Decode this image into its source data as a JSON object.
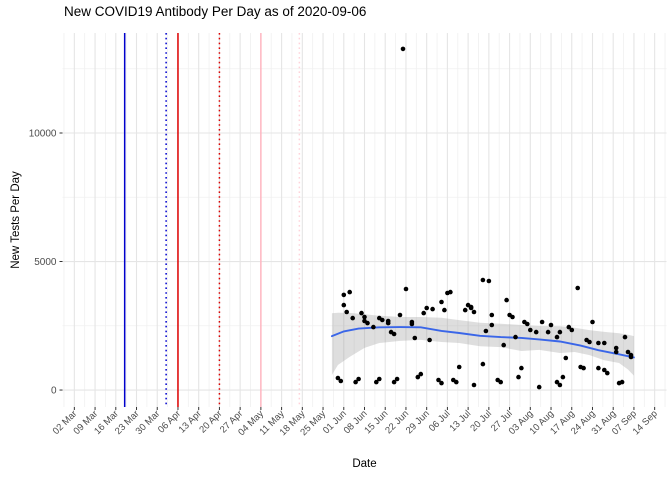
{
  "chart": {
    "title": "New COVID19 Antibody Per Day as of 2020-09-06",
    "x_label": "Date",
    "y_label": "New Tests Per Day"
  },
  "chart_data": {
    "type": "scatter",
    "title": "New COVID19 Antibody Per Day as of 2020-09-06",
    "xlabel": "Date",
    "ylabel": "New Tests Per Day",
    "legend": "none",
    "grid": true,
    "x_domain": [
      "2020-02-27",
      "2020-09-18"
    ],
    "y_domain": [
      -660,
      13890
    ],
    "x_breaks": [
      [
        "2020-03-02",
        "02 Mar"
      ],
      [
        "2020-03-09",
        "09 Mar"
      ],
      [
        "2020-03-16",
        "16 Mar"
      ],
      [
        "2020-03-23",
        "23 Mar"
      ],
      [
        "2020-03-30",
        "30 Mar"
      ],
      [
        "2020-04-06",
        "06 Apr"
      ],
      [
        "2020-04-13",
        "13 Apr"
      ],
      [
        "2020-04-20",
        "20 Apr"
      ],
      [
        "2020-04-27",
        "27 Apr"
      ],
      [
        "2020-05-04",
        "04 May"
      ],
      [
        "2020-05-11",
        "11 May"
      ],
      [
        "2020-05-18",
        "18 May"
      ],
      [
        "2020-05-25",
        "25 May"
      ],
      [
        "2020-06-01",
        "01 Jun"
      ],
      [
        "2020-06-08",
        "08 Jun"
      ],
      [
        "2020-06-15",
        "15 Jun"
      ],
      [
        "2020-06-22",
        "22 Jun"
      ],
      [
        "2020-06-29",
        "29 Jun"
      ],
      [
        "2020-07-06",
        "06 Jul"
      ],
      [
        "2020-07-13",
        "13 Jul"
      ],
      [
        "2020-07-20",
        "20 Jul"
      ],
      [
        "2020-07-27",
        "27 Jul"
      ],
      [
        "2020-08-03",
        "03 Aug"
      ],
      [
        "2020-08-10",
        "10 Aug"
      ],
      [
        "2020-08-17",
        "17 Aug"
      ],
      [
        "2020-08-24",
        "24 Aug"
      ],
      [
        "2020-08-31",
        "31 Aug"
      ],
      [
        "2020-09-07",
        "07 Sep"
      ],
      [
        "2020-09-14",
        "14 Sep"
      ]
    ],
    "y_breaks": [
      [
        0,
        "0"
      ],
      [
        5000,
        "5000"
      ],
      [
        10000,
        "10000"
      ]
    ],
    "y_minor_breaks": [
      2500,
      7500,
      12500
    ],
    "point_color": "#000000",
    "vlines": [
      {
        "date": "2020-03-19",
        "color": "#0000CC",
        "style": "solid"
      },
      {
        "date": "2020-04-02",
        "color": "#0000CC",
        "style": "dotted"
      },
      {
        "date": "2020-04-06",
        "color": "#DD0000",
        "style": "solid"
      },
      {
        "date": "2020-04-20",
        "color": "#DD0000",
        "style": "dotted"
      },
      {
        "date": "2020-05-04",
        "color": "#FFB6C1",
        "style": "solid"
      },
      {
        "date": "2020-05-17",
        "color": "#FFD3DA",
        "style": "dotted"
      }
    ],
    "smooth_line": {
      "color": "#3A66E8",
      "points": [
        [
          "2020-05-28",
          2100
        ],
        [
          "2020-06-01",
          2280
        ],
        [
          "2020-06-06",
          2390
        ],
        [
          "2020-06-13",
          2440
        ],
        [
          "2020-06-20",
          2450
        ],
        [
          "2020-06-27",
          2440
        ],
        [
          "2020-07-04",
          2300
        ],
        [
          "2020-07-10",
          2220
        ],
        [
          "2020-07-17",
          2110
        ],
        [
          "2020-07-24",
          2060
        ],
        [
          "2020-07-31",
          2030
        ],
        [
          "2020-08-06",
          1970
        ],
        [
          "2020-08-13",
          1890
        ],
        [
          "2020-08-20",
          1730
        ],
        [
          "2020-08-26",
          1550
        ],
        [
          "2020-09-02",
          1390
        ],
        [
          "2020-09-07",
          1270
        ]
      ]
    },
    "confidence_band": {
      "color": "#999999",
      "opacity": 0.32,
      "points": [
        [
          "2020-05-28",
          585,
          2990
        ],
        [
          "2020-05-30",
          975,
          3010
        ],
        [
          "2020-06-03",
          1290,
          3000
        ],
        [
          "2020-06-08",
          1640,
          2950
        ],
        [
          "2020-06-13",
          1830,
          2890
        ],
        [
          "2020-06-20",
          1910,
          2840
        ],
        [
          "2020-06-27",
          1950,
          2840
        ],
        [
          "2020-07-04",
          1870,
          2810
        ],
        [
          "2020-07-10",
          1830,
          2720
        ],
        [
          "2020-07-17",
          1700,
          2620
        ],
        [
          "2020-07-24",
          1670,
          2580
        ],
        [
          "2020-07-31",
          1520,
          2530
        ],
        [
          "2020-08-06",
          1560,
          2490
        ],
        [
          "2020-08-13",
          1440,
          2480
        ],
        [
          "2020-08-18",
          1480,
          2420
        ],
        [
          "2020-08-23",
          1360,
          2330
        ],
        [
          "2020-08-28",
          1160,
          2260
        ],
        [
          "2020-09-02",
          1050,
          2210
        ],
        [
          "2020-09-05",
          800,
          2150
        ],
        [
          "2020-09-07",
          560,
          2100
        ]
      ]
    },
    "points": [
      [
        "2020-05-30",
        470
      ],
      [
        "2020-05-31",
        350
      ],
      [
        "2020-06-01",
        3700
      ],
      [
        "2020-06-01",
        3305
      ],
      [
        "2020-06-02",
        3035
      ],
      [
        "2020-06-03",
        3810
      ],
      [
        "2020-06-04",
        2800
      ],
      [
        "2020-06-05",
        310
      ],
      [
        "2020-06-06",
        430
      ],
      [
        "2020-06-07",
        2995
      ],
      [
        "2020-06-08",
        2840
      ],
      [
        "2020-06-08",
        2685
      ],
      [
        "2020-06-09",
        2605
      ],
      [
        "2020-06-11",
        2450
      ],
      [
        "2020-06-12",
        310
      ],
      [
        "2020-06-13",
        430
      ],
      [
        "2020-06-13",
        2800
      ],
      [
        "2020-06-14",
        2725
      ],
      [
        "2020-06-16",
        2685
      ],
      [
        "2020-06-16",
        2605
      ],
      [
        "2020-06-17",
        2255
      ],
      [
        "2020-06-18",
        2180
      ],
      [
        "2020-06-18",
        310
      ],
      [
        "2020-06-19",
        430
      ],
      [
        "2020-06-20",
        2920
      ],
      [
        "2020-06-21",
        13270
      ],
      [
        "2020-06-22",
        3930
      ],
      [
        "2020-06-24",
        2645
      ],
      [
        "2020-06-24",
        2570
      ],
      [
        "2020-06-25",
        2025
      ],
      [
        "2020-06-26",
        505
      ],
      [
        "2020-06-27",
        620
      ],
      [
        "2020-06-28",
        2995
      ],
      [
        "2020-06-29",
        3190
      ],
      [
        "2020-06-30",
        1945
      ],
      [
        "2020-07-01",
        3150
      ],
      [
        "2020-07-03",
        390
      ],
      [
        "2020-07-04",
        270
      ],
      [
        "2020-07-04",
        3425
      ],
      [
        "2020-07-05",
        3110
      ],
      [
        "2020-07-06",
        3775
      ],
      [
        "2020-07-07",
        3810
      ],
      [
        "2020-07-08",
        390
      ],
      [
        "2020-07-09",
        310
      ],
      [
        "2020-07-10",
        895
      ],
      [
        "2020-07-12",
        3110
      ],
      [
        "2020-07-13",
        3305
      ],
      [
        "2020-07-14",
        3190
      ],
      [
        "2020-07-14",
        3230
      ],
      [
        "2020-07-15",
        3035
      ],
      [
        "2020-07-15",
        195
      ],
      [
        "2020-07-18",
        1010
      ],
      [
        "2020-07-18",
        4280
      ],
      [
        "2020-07-19",
        2295
      ],
      [
        "2020-07-20",
        4240
      ],
      [
        "2020-07-21",
        2920
      ],
      [
        "2020-07-21",
        2530
      ],
      [
        "2020-07-23",
        390
      ],
      [
        "2020-07-24",
        310
      ],
      [
        "2020-07-25",
        1750
      ],
      [
        "2020-07-26",
        3500
      ],
      [
        "2020-07-27",
        2920
      ],
      [
        "2020-07-28",
        2840
      ],
      [
        "2020-07-29",
        2060
      ],
      [
        "2020-07-30",
        505
      ],
      [
        "2020-07-31",
        855
      ],
      [
        "2020-08-01",
        2645
      ],
      [
        "2020-08-02",
        2570
      ],
      [
        "2020-08-03",
        2335
      ],
      [
        "2020-08-05",
        2255
      ],
      [
        "2020-08-06",
        115
      ],
      [
        "2020-08-07",
        2645
      ],
      [
        "2020-08-09",
        2255
      ],
      [
        "2020-08-10",
        2530
      ],
      [
        "2020-08-12",
        2060
      ],
      [
        "2020-08-12",
        310
      ],
      [
        "2020-08-13",
        195
      ],
      [
        "2020-08-13",
        2255
      ],
      [
        "2020-08-14",
        505
      ],
      [
        "2020-08-15",
        1245
      ],
      [
        "2020-08-16",
        2450
      ],
      [
        "2020-08-17",
        2335
      ],
      [
        "2020-08-19",
        3970
      ],
      [
        "2020-08-20",
        895
      ],
      [
        "2020-08-21",
        855
      ],
      [
        "2020-08-22",
        1945
      ],
      [
        "2020-08-23",
        1870
      ],
      [
        "2020-08-24",
        2645
      ],
      [
        "2020-08-26",
        1830
      ],
      [
        "2020-08-26",
        855
      ],
      [
        "2020-08-28",
        1830
      ],
      [
        "2020-08-28",
        780
      ],
      [
        "2020-08-29",
        660
      ],
      [
        "2020-09-01",
        1635
      ],
      [
        "2020-09-01",
        1480
      ],
      [
        "2020-09-02",
        270
      ],
      [
        "2020-09-03",
        310
      ],
      [
        "2020-09-04",
        2060
      ],
      [
        "2020-09-05",
        1480
      ],
      [
        "2020-09-06",
        1360
      ],
      [
        "2020-09-06",
        1285
      ]
    ]
  }
}
